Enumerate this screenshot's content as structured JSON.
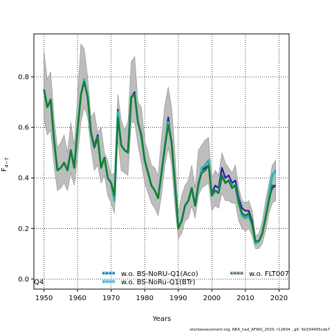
{
  "chart_data": {
    "type": "line",
    "ylabel_main": "F",
    "ylabel_sub": "4−7",
    "xlabel": "Years",
    "quarter_label": "Q4",
    "footer": "stockassessment.org,  NEA_had_AFWG_2020,  r12604 ,  git: 5b334405cda7",
    "xlim": [
      1947,
      2023
    ],
    "ylim": [
      -0.04,
      0.97
    ],
    "x_ticks": [
      1950,
      1960,
      1970,
      1980,
      1990,
      2000,
      2010,
      2020
    ],
    "y_ticks": [
      0.0,
      0.2,
      0.4,
      0.6,
      0.8
    ],
    "y_tick_labels": [
      "0.0",
      "0.2",
      "0.4",
      "0.6",
      "0.8"
    ],
    "grid": true,
    "legend_position": "bottom",
    "colors": {
      "band": "#bdbdbd",
      "band_alt": "#87cee6",
      "aco": "#1f1fa0",
      "btr": "#2db3b3",
      "flt": "#1a7a2a"
    },
    "years": [
      1950,
      1951,
      1952,
      1953,
      1954,
      1955,
      1956,
      1957,
      1958,
      1959,
      1960,
      1961,
      1962,
      1963,
      1964,
      1965,
      1966,
      1967,
      1968,
      1969,
      1970,
      1971,
      1972,
      1973,
      1974,
      1975,
      1976,
      1977,
      1978,
      1979,
      1980,
      1981,
      1982,
      1983,
      1984,
      1985,
      1986,
      1987,
      1988,
      1989,
      1990,
      1991,
      1992,
      1993,
      1994,
      1995,
      1996,
      1997,
      1998,
      1999,
      2000,
      2001,
      2002,
      2003,
      2004,
      2005,
      2006,
      2007,
      2008,
      2009,
      2010,
      2011,
      2012,
      2013,
      2014,
      2015,
      2016,
      2017,
      2018,
      2019
    ],
    "band_lower": [
      0.63,
      0.57,
      0.59,
      0.45,
      0.35,
      0.36,
      0.38,
      0.35,
      0.42,
      0.37,
      0.48,
      0.62,
      0.68,
      0.64,
      0.52,
      0.43,
      0.45,
      0.38,
      0.41,
      0.33,
      0.3,
      0.26,
      0.55,
      0.43,
      0.42,
      0.41,
      0.62,
      0.62,
      0.53,
      0.46,
      0.38,
      0.34,
      0.3,
      0.28,
      0.25,
      0.33,
      0.45,
      0.52,
      0.45,
      0.29,
      0.16,
      0.18,
      0.23,
      0.24,
      0.29,
      0.24,
      0.33,
      0.36,
      0.37,
      0.38,
      0.27,
      0.29,
      0.28,
      0.34,
      0.31,
      0.31,
      0.3,
      0.3,
      0.23,
      0.2,
      0.19,
      0.2,
      0.17,
      0.12,
      0.12,
      0.14,
      0.19,
      0.26,
      0.3,
      0.31
    ],
    "band_upper": [
      0.9,
      0.79,
      0.82,
      0.64,
      0.52,
      0.54,
      0.57,
      0.5,
      0.62,
      0.53,
      0.72,
      0.93,
      0.91,
      0.8,
      0.64,
      0.66,
      0.58,
      0.6,
      0.5,
      0.47,
      0.41,
      0.42,
      0.73,
      0.63,
      0.59,
      0.62,
      0.86,
      0.88,
      0.7,
      0.68,
      0.55,
      0.5,
      0.45,
      0.44,
      0.41,
      0.56,
      0.69,
      0.76,
      0.68,
      0.5,
      0.26,
      0.33,
      0.37,
      0.39,
      0.45,
      0.36,
      0.51,
      0.53,
      0.55,
      0.56,
      0.4,
      0.43,
      0.41,
      0.5,
      0.46,
      0.44,
      0.42,
      0.45,
      0.36,
      0.31,
      0.3,
      0.31,
      0.27,
      0.17,
      0.18,
      0.23,
      0.31,
      0.38,
      0.45,
      0.47
    ],
    "series": [
      {
        "name": "w.o. BS-NoRU-Q1(Aco)",
        "values": [
          0.75,
          0.68,
          0.71,
          0.55,
          0.43,
          0.44,
          0.46,
          0.43,
          0.51,
          0.44,
          0.59,
          0.73,
          0.79,
          0.72,
          0.58,
          0.53,
          0.57,
          0.44,
          0.48,
          0.4,
          0.38,
          0.33,
          0.67,
          0.53,
          0.51,
          0.5,
          0.72,
          0.74,
          0.62,
          0.56,
          0.47,
          0.42,
          0.37,
          0.35,
          0.32,
          0.42,
          0.53,
          0.64,
          0.54,
          0.38,
          0.2,
          0.23,
          0.29,
          0.31,
          0.36,
          0.29,
          0.37,
          0.43,
          0.44,
          0.45,
          0.34,
          0.37,
          0.36,
          0.44,
          0.4,
          0.41,
          0.38,
          0.39,
          0.32,
          0.28,
          0.27,
          0.27,
          0.23,
          0.15,
          0.15,
          0.18,
          0.24,
          0.32,
          0.36,
          0.37
        ]
      },
      {
        "name": "w.o. BS-NoRu-Q1(BTr)",
        "values": [
          0.75,
          0.68,
          0.71,
          0.55,
          0.43,
          0.44,
          0.46,
          0.43,
          0.51,
          0.44,
          0.59,
          0.73,
          0.79,
          0.72,
          0.58,
          0.52,
          0.56,
          0.44,
          0.48,
          0.4,
          0.38,
          0.31,
          0.66,
          0.53,
          0.51,
          0.5,
          0.72,
          0.73,
          0.62,
          0.57,
          0.47,
          0.42,
          0.37,
          0.35,
          0.32,
          0.42,
          0.53,
          0.62,
          0.54,
          0.38,
          0.2,
          0.23,
          0.29,
          0.31,
          0.36,
          0.29,
          0.37,
          0.44,
          0.45,
          0.47,
          0.33,
          0.35,
          0.34,
          0.41,
          0.38,
          0.39,
          0.37,
          0.37,
          0.3,
          0.25,
          0.24,
          0.25,
          0.21,
          0.14,
          0.15,
          0.18,
          0.25,
          0.33,
          0.41,
          0.43
        ]
      },
      {
        "name": "w.o. FLT007",
        "values": [
          0.75,
          0.68,
          0.71,
          0.55,
          0.43,
          0.44,
          0.46,
          0.43,
          0.51,
          0.44,
          0.59,
          0.73,
          0.78,
          0.72,
          0.58,
          0.52,
          0.56,
          0.44,
          0.48,
          0.4,
          0.38,
          0.33,
          0.64,
          0.53,
          0.51,
          0.5,
          0.72,
          0.73,
          0.62,
          0.57,
          0.47,
          0.42,
          0.37,
          0.35,
          0.32,
          0.42,
          0.52,
          0.61,
          0.54,
          0.38,
          0.2,
          0.23,
          0.29,
          0.31,
          0.36,
          0.29,
          0.38,
          0.42,
          0.43,
          0.45,
          0.33,
          0.35,
          0.34,
          0.41,
          0.38,
          0.39,
          0.36,
          0.37,
          0.3,
          0.26,
          0.25,
          0.26,
          0.22,
          0.15,
          0.15,
          0.18,
          0.24,
          0.31,
          0.37,
          0.37
        ]
      }
    ]
  }
}
